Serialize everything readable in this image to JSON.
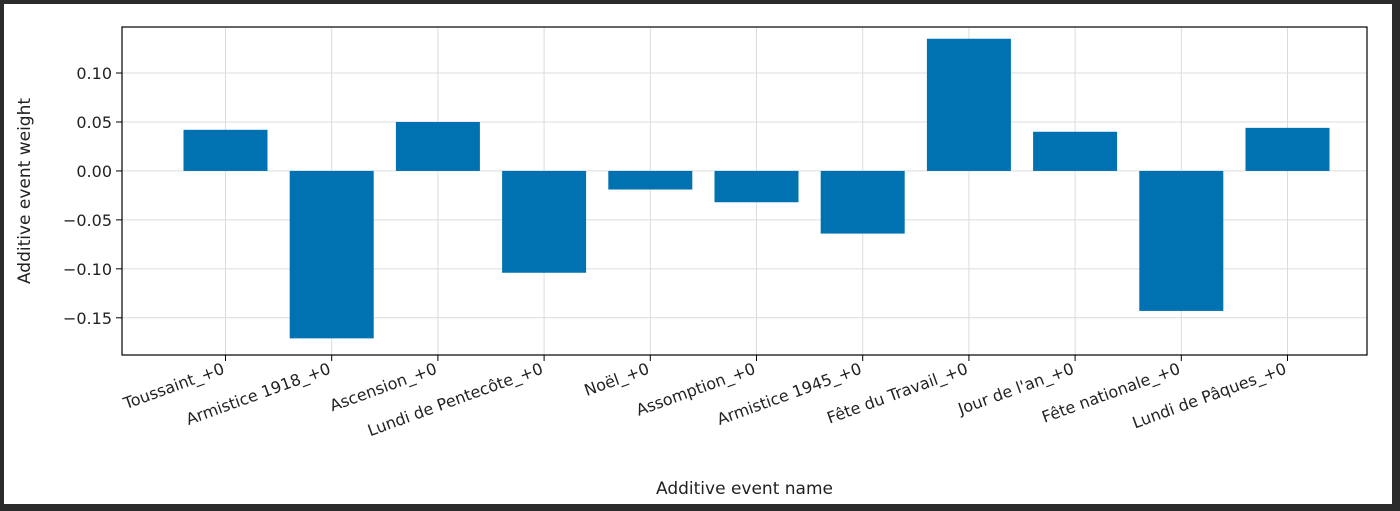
{
  "chart_data": {
    "type": "bar",
    "title": "",
    "xlabel": "Additive event name",
    "ylabel": "Additive event weight",
    "categories": [
      "Toussaint_+0",
      "Armistice 1918_+0",
      "Ascension_+0",
      "Lundi de Pentecôte_+0",
      "Noël_+0",
      "Assomption_+0",
      "Armistice 1945_+0",
      "Fête du Travail_+0",
      "Jour de l'an_+0",
      "Fête nationale_+0",
      "Lundi de Pâques_+0"
    ],
    "values": [
      0.042,
      -0.171,
      0.05,
      -0.104,
      -0.019,
      -0.032,
      -0.064,
      0.135,
      0.04,
      -0.143,
      0.044
    ],
    "ylim": [
      -0.188,
      0.147
    ],
    "yticks": [
      -0.15,
      -0.1,
      -0.05,
      0.0,
      0.05,
      0.1
    ],
    "ytick_labels": [
      "−0.15",
      "−0.10",
      "−0.05",
      "0.00",
      "0.05",
      "0.10"
    ],
    "grid": true,
    "bar_color": "#0072b2"
  }
}
